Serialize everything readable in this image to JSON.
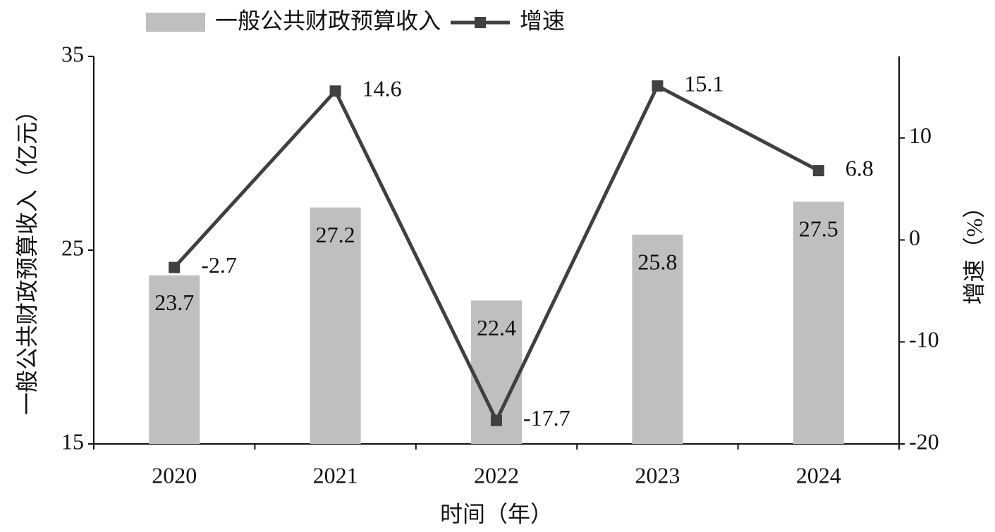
{
  "chart_data": {
    "type": "bar-line",
    "legend_position": "top",
    "x_label": "时间（年）",
    "y_label": "一般公共财政预算收入（亿元）",
    "y2_label": "增速（%）",
    "categories": [
      "2020",
      "2021",
      "2022",
      "2023",
      "2024"
    ],
    "series": [
      {
        "name": "一般公共财政预算收入",
        "type": "bar",
        "color": "#bfbfbf",
        "values": [
          23.7,
          27.2,
          22.4,
          25.8,
          27.5
        ]
      },
      {
        "name": "增速",
        "type": "line",
        "axis": "y2",
        "color": "#404040",
        "values": [
          -2.7,
          14.6,
          -17.7,
          15.1,
          6.8
        ]
      }
    ],
    "ylim": [
      15,
      35
    ],
    "yticks": [
      15,
      25,
      35
    ],
    "y2lim": [
      -20,
      18
    ],
    "y2ticks": [
      -20,
      -10,
      0,
      10
    ]
  }
}
